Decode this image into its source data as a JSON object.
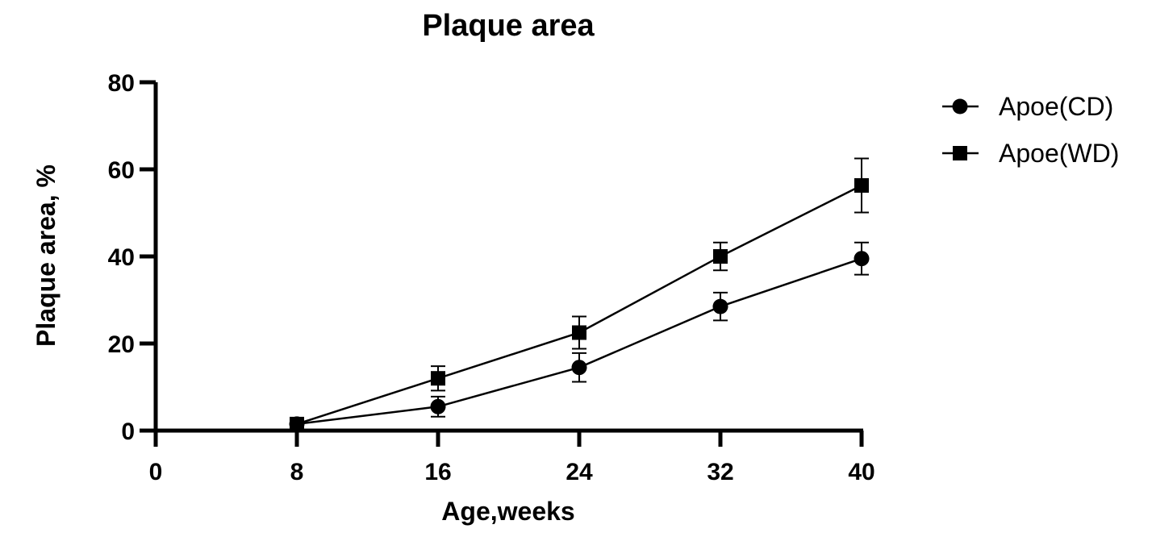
{
  "chart_data": {
    "type": "line",
    "title": "Plaque area",
    "xlabel": "Age,weeks",
    "ylabel": "Plaque area, %",
    "xlim": [
      0,
      40
    ],
    "ylim": [
      0,
      80
    ],
    "x_ticks": [
      0,
      8,
      16,
      24,
      32,
      40
    ],
    "y_ticks": [
      0,
      20,
      40,
      60,
      80
    ],
    "grid": false,
    "legend_position": "top-right",
    "series": [
      {
        "name": "Apoe(CD)",
        "marker": "circle",
        "color": "#000000",
        "x": [
          8,
          16,
          24,
          32,
          40
        ],
        "y": [
          1.5,
          5.5,
          14.5,
          28.5,
          39.5
        ],
        "error": [
          0.5,
          2.3,
          3.3,
          3.2,
          3.7
        ]
      },
      {
        "name": "Apoe(WD)",
        "marker": "square",
        "color": "#000000",
        "x": [
          8,
          16,
          24,
          32,
          40
        ],
        "y": [
          1.5,
          12,
          22.5,
          40,
          56.3
        ],
        "error": [
          0.5,
          2.8,
          3.7,
          3.2,
          6.2
        ]
      }
    ]
  }
}
